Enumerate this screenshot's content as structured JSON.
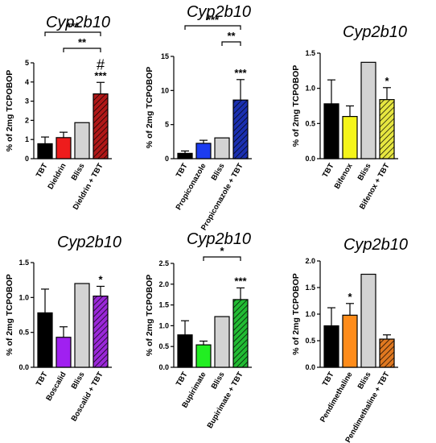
{
  "chart_data": [
    {
      "type": "bar",
      "title": "Cyp2b10",
      "ylabel": "% of 2mg TCPOBOP",
      "ylim": [
        0,
        5
      ],
      "yticks": [
        0,
        1,
        2,
        3,
        4,
        5
      ],
      "categories": [
        "TBT",
        "Dieldrin",
        "Bliss",
        "Dieldrin + TBT"
      ],
      "values": [
        0.78,
        1.1,
        1.88,
        3.38
      ],
      "errors": [
        0.35,
        0.28,
        0,
        0.6
      ],
      "colors": [
        "#000000",
        "#ee1c1c",
        "#d3d3d3",
        "#b01818"
      ],
      "hatched": [
        false,
        false,
        false,
        true
      ],
      "bar_labels": [
        "",
        "",
        "",
        "***"
      ],
      "extra_mark": "#",
      "brackets": [
        {
          "from": 0,
          "to": 3,
          "label": "***"
        },
        {
          "from": 1,
          "to": 3,
          "label": "**"
        }
      ]
    },
    {
      "type": "bar",
      "title": "Cyp2b10",
      "ylabel": "% of 2mg TCPOBOP",
      "ylim": [
        0,
        15
      ],
      "yticks": [
        0,
        5,
        10,
        15
      ],
      "categories": [
        "TBT",
        "Propiconazole",
        "Bliss",
        "Propiconazole + TBT"
      ],
      "values": [
        0.78,
        2.25,
        3.05,
        8.6
      ],
      "errors": [
        0.35,
        0.45,
        0,
        3.0
      ],
      "colors": [
        "#000000",
        "#1c3cf0",
        "#d3d3d3",
        "#1a2fb0"
      ],
      "hatched": [
        false,
        false,
        false,
        true
      ],
      "bar_labels": [
        "",
        "",
        "",
        "***"
      ],
      "brackets": [
        {
          "from": 0,
          "to": 3,
          "label": "***"
        },
        {
          "from": 2,
          "to": 3,
          "label": "**"
        }
      ]
    },
    {
      "type": "bar",
      "title": "Cyp2b10",
      "ylabel": "% of 2mg TCPOBOP",
      "ylim": [
        0,
        1.5
      ],
      "yticks": [
        "0.0",
        "0.5",
        "1.0",
        "1.5"
      ],
      "categories": [
        "TBT",
        "Bifenox",
        "Bliss",
        "Bifenox + TBT"
      ],
      "values": [
        0.78,
        0.6,
        1.37,
        0.84
      ],
      "errors": [
        0.34,
        0.15,
        0,
        0.17
      ],
      "colors": [
        "#000000",
        "#f5f51a",
        "#d3d3d3",
        "#e6e640"
      ],
      "hatched": [
        false,
        false,
        false,
        true
      ],
      "bar_labels": [
        "",
        "",
        "",
        "*"
      ],
      "brackets": []
    },
    {
      "type": "bar",
      "title": "Cyp2b10",
      "ylabel": "% of 2mg TCPOBOP",
      "ylim": [
        0,
        1.5
      ],
      "yticks": [
        "0.0",
        "0.5",
        "1.0",
        "1.5"
      ],
      "categories": [
        "TBT",
        "Boscalid",
        "Bliss",
        "Boscalid + TBT"
      ],
      "values": [
        0.78,
        0.43,
        1.2,
        1.02
      ],
      "errors": [
        0.34,
        0.15,
        0,
        0.14
      ],
      "colors": [
        "#000000",
        "#a020f0",
        "#d3d3d3",
        "#9a28d8"
      ],
      "hatched": [
        false,
        false,
        false,
        true
      ],
      "bar_labels": [
        "",
        "",
        "",
        "*"
      ],
      "brackets": []
    },
    {
      "type": "bar",
      "title": "Cyp2b10",
      "ylabel": "% of 2mg TCPOBOP",
      "ylim": [
        0,
        2.5
      ],
      "yticks": [
        "0.0",
        "0.5",
        "1.0",
        "1.5",
        "2.0",
        "2.5"
      ],
      "categories": [
        "TBT",
        "Bupirimate",
        "Bliss",
        "Bupirimate + TBT"
      ],
      "values": [
        0.78,
        0.54,
        1.22,
        1.63
      ],
      "errors": [
        0.34,
        0.09,
        0,
        0.28
      ],
      "colors": [
        "#000000",
        "#22ee22",
        "#d3d3d3",
        "#22bb33"
      ],
      "hatched": [
        false,
        false,
        false,
        true
      ],
      "bar_labels": [
        "",
        "",
        "",
        "***"
      ],
      "brackets": [
        {
          "from": 1,
          "to": 3,
          "label": "*"
        }
      ]
    },
    {
      "type": "bar",
      "title": "Cyp2b10",
      "ylabel": "% of 2mg TCPOBOP",
      "ylim": [
        0,
        2.0
      ],
      "yticks": [
        "0.0",
        "0.5",
        "1.0",
        "1.5",
        "2.0"
      ],
      "categories": [
        "TBT",
        "Pendimethaline",
        "Bliss",
        "Pendimethaline + TBT"
      ],
      "values": [
        0.78,
        0.98,
        1.75,
        0.53
      ],
      "errors": [
        0.34,
        0.22,
        0,
        0.08
      ],
      "colors": [
        "#000000",
        "#ff8c1a",
        "#d3d3d3",
        "#e07820"
      ],
      "hatched": [
        false,
        false,
        false,
        true
      ],
      "bar_labels": [
        "",
        "*",
        "",
        ""
      ],
      "brackets": []
    }
  ]
}
